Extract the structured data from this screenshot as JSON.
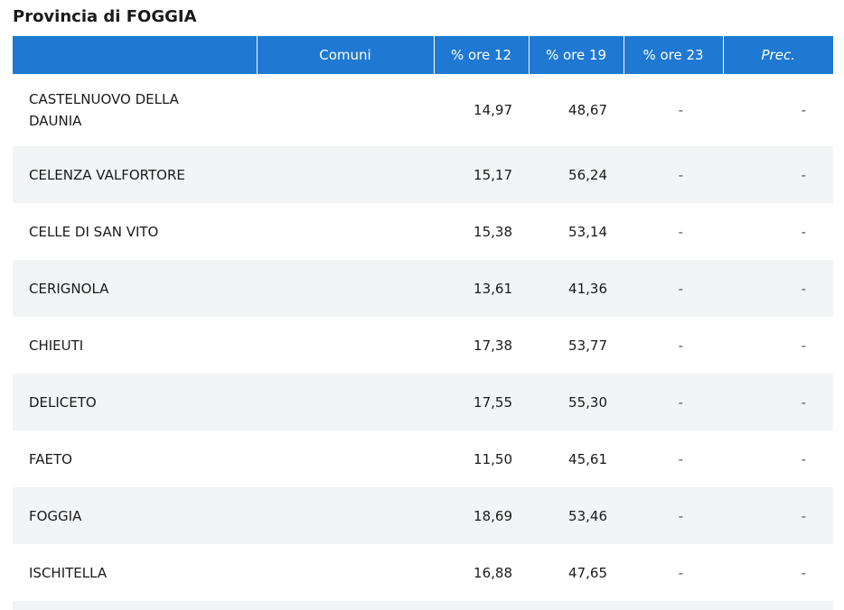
{
  "header": {
    "title": "Provincia di FOGGIA"
  },
  "table": {
    "columns": [
      "Comuni",
      "% ore 12",
      "% ore 19",
      "% ore 23",
      "Prec."
    ],
    "rows": [
      [
        "CASTELNUOVO DELLA DAUNIA",
        "14,97",
        "48,67",
        "-",
        "-"
      ],
      [
        "CELENZA VALFORTORE",
        "15,17",
        "56,24",
        "-",
        "-"
      ],
      [
        "CELLE DI SAN VITO",
        "15,38",
        "53,14",
        "-",
        "-"
      ],
      [
        "CERIGNOLA",
        "13,61",
        "41,36",
        "-",
        "-"
      ],
      [
        "CHIEUTI",
        "17,38",
        "53,77",
        "-",
        "-"
      ],
      [
        "DELICETO",
        "17,55",
        "55,30",
        "-",
        "-"
      ],
      [
        "FAETO",
        "11,50",
        "45,61",
        "-",
        "-"
      ],
      [
        "FOGGIA",
        "18,69",
        "53,46",
        "-",
        "-"
      ],
      [
        "ISCHITELLA",
        "16,88",
        "47,65",
        "-",
        "-"
      ]
    ]
  }
}
